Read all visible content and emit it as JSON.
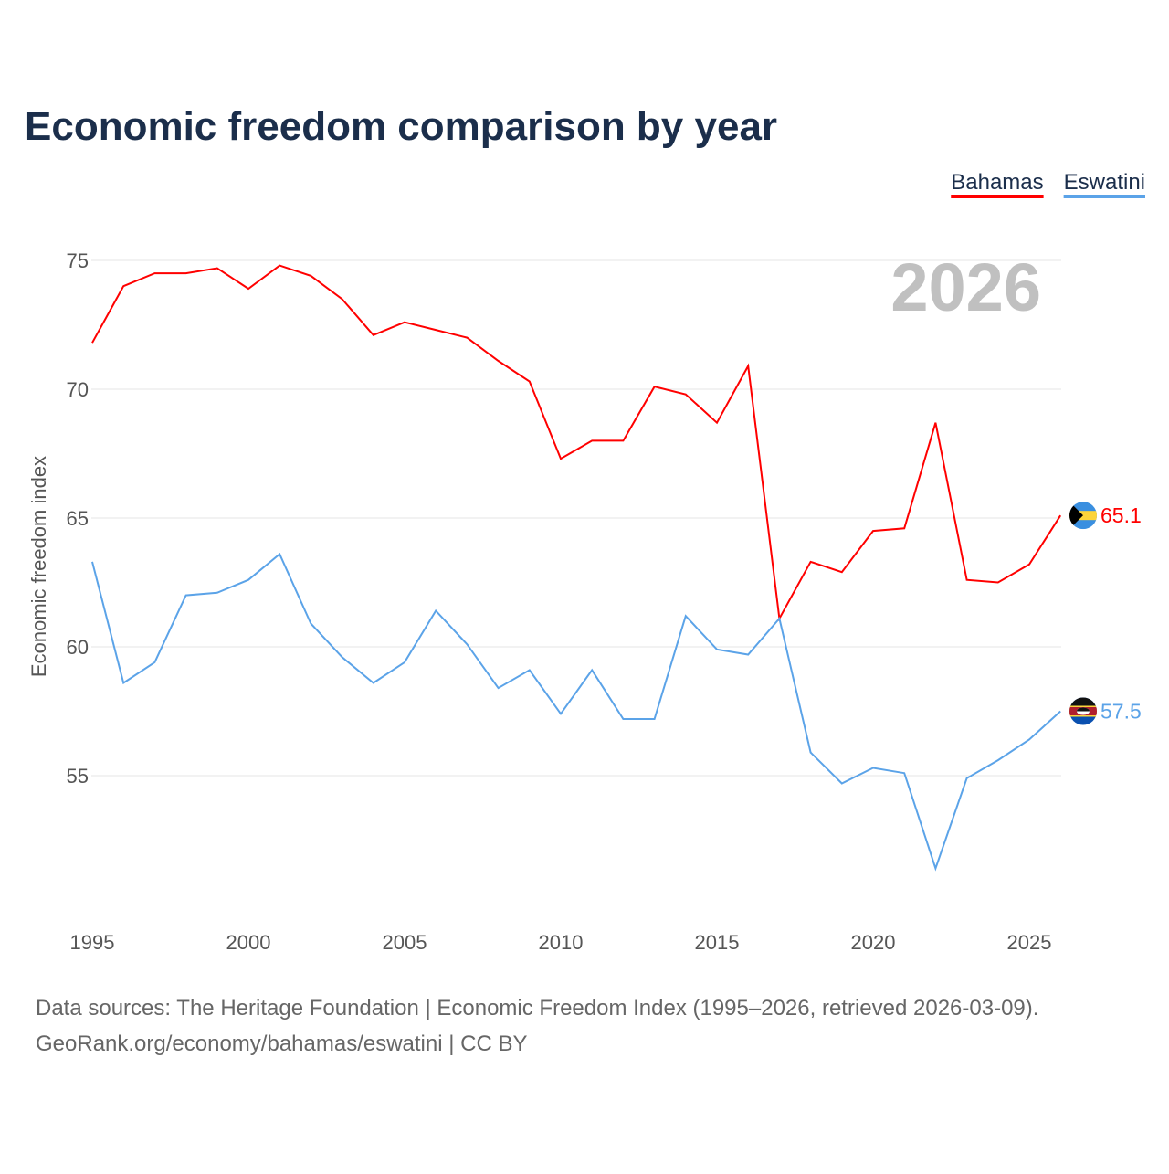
{
  "chart_data": {
    "type": "line",
    "title": "Economic freedom comparison by year",
    "xlabel": "",
    "ylabel": "Economic freedom index",
    "watermark_year": "2026",
    "xlim": [
      1995,
      2026
    ],
    "ylim": [
      50,
      77
    ],
    "yticks": [
      55,
      60,
      65,
      70,
      75
    ],
    "xticks": [
      1995,
      2000,
      2005,
      2010,
      2015,
      2020,
      2025
    ],
    "grid": true,
    "legend_position": "top-right",
    "x": [
      1995,
      1996,
      1997,
      1998,
      1999,
      2000,
      2001,
      2002,
      2003,
      2004,
      2005,
      2006,
      2007,
      2008,
      2009,
      2010,
      2011,
      2012,
      2013,
      2014,
      2015,
      2016,
      2017,
      2018,
      2019,
      2020,
      2021,
      2022,
      2023,
      2024,
      2025,
      2026
    ],
    "series": [
      {
        "name": "Bahamas",
        "color": "#ff0000",
        "end_label": "65.1",
        "flag": "bahamas-flag",
        "values": [
          71.8,
          74.0,
          74.5,
          74.5,
          74.7,
          73.9,
          74.8,
          74.4,
          73.5,
          72.1,
          72.6,
          72.3,
          72.0,
          71.1,
          70.3,
          67.3,
          68.0,
          68.0,
          70.1,
          69.8,
          68.7,
          70.9,
          61.1,
          63.3,
          62.9,
          64.5,
          64.6,
          68.7,
          62.6,
          62.5,
          63.2,
          65.1
        ]
      },
      {
        "name": "Eswatini",
        "color": "#5ba3e8",
        "end_label": "57.5",
        "flag": "eswatini-flag",
        "values": [
          63.3,
          58.6,
          59.4,
          62.0,
          62.1,
          62.6,
          63.6,
          60.9,
          59.6,
          58.6,
          59.4,
          61.4,
          60.1,
          58.4,
          59.1,
          57.4,
          59.1,
          57.2,
          57.2,
          61.2,
          59.9,
          59.7,
          61.1,
          55.9,
          54.7,
          55.3,
          55.1,
          51.4,
          54.9,
          55.6,
          56.4,
          57.5
        ]
      }
    ]
  },
  "footer": {
    "source": "Data sources: The Heritage Foundation | Economic Freedom Index (1995–2026, retrieved 2026-03-09).",
    "credit": "GeoRank.org/economy/bahamas/eswatini | CC BY"
  }
}
